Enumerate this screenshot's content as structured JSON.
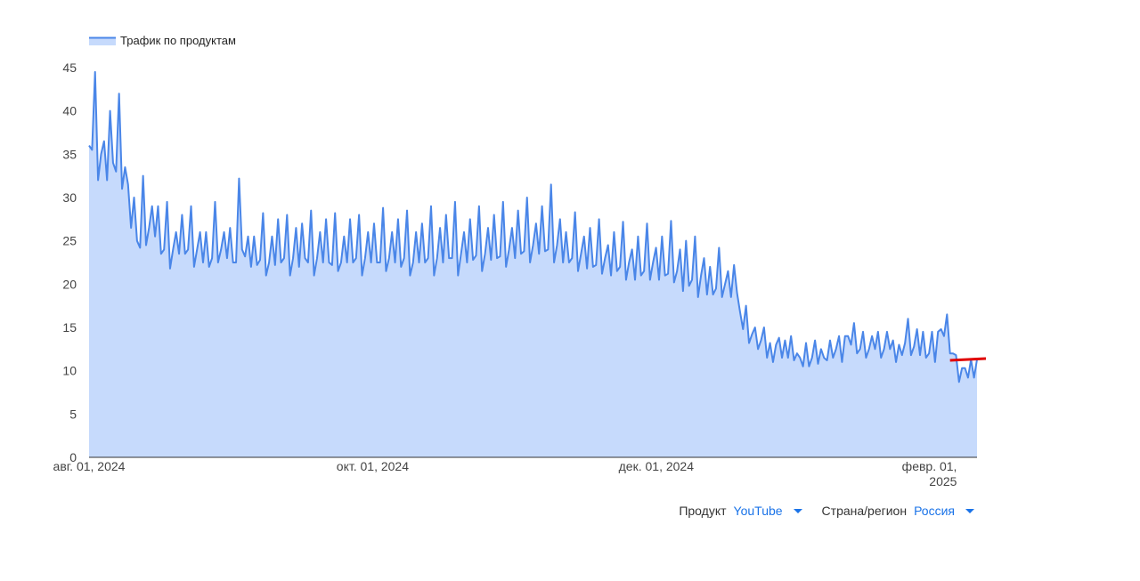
{
  "chart_data": {
    "type": "area",
    "title": "",
    "xlabel": "",
    "ylabel": "",
    "ylim": [
      0,
      45
    ],
    "yticks": [
      0,
      5,
      10,
      15,
      20,
      25,
      30,
      35,
      40,
      45
    ],
    "xlim": [
      "2024-08-01",
      "2025-02-08"
    ],
    "xticks": [
      {
        "date": "2024-08-01",
        "label": [
          "авг. 01, 2024"
        ]
      },
      {
        "date": "2024-10-01",
        "label": [
          "окт. 01, 2024"
        ]
      },
      {
        "date": "2024-12-01",
        "label": [
          "дек. 01, 2024"
        ]
      },
      {
        "date": "2025-02-01",
        "label": [
          "февр. 01,",
          "2025"
        ]
      }
    ],
    "grid": false,
    "legend_position": "top-left",
    "series": [
      {
        "name": "Трафик по продуктам",
        "color": "#4a86e8",
        "fill": "#c6dafc",
        "values": [
          36,
          35.5,
          44.5,
          32,
          35,
          36.5,
          32,
          40,
          34,
          33,
          42,
          31,
          33.5,
          31.5,
          26.5,
          30,
          25,
          24.2,
          32.5,
          24.5,
          26.5,
          29,
          25.5,
          29,
          23.5,
          24,
          29.5,
          21.8,
          24,
          26,
          23.5,
          28,
          23.5,
          24,
          29,
          22,
          24,
          26,
          22.5,
          26,
          22,
          23,
          29.5,
          22.5,
          24,
          26,
          23,
          26.5,
          22.5,
          22.5,
          32.2,
          24,
          23.2,
          25.5,
          22,
          25.5,
          22.2,
          22.8,
          28.2,
          21,
          22.5,
          25.5,
          22.2,
          27.5,
          22.5,
          23,
          28,
          21,
          23,
          26.5,
          22,
          27,
          23,
          22.5,
          28.5,
          21,
          23,
          26,
          22.5,
          27.5,
          22.5,
          22.2,
          28.2,
          21.5,
          22.5,
          25.5,
          22.5,
          27.5,
          22.5,
          23,
          28,
          21,
          23,
          26,
          22.5,
          27,
          22.5,
          22.5,
          28.8,
          21.5,
          23,
          26,
          22.5,
          27.5,
          22,
          23,
          28.5,
          21,
          22.5,
          26,
          22.5,
          27,
          22.5,
          23,
          29,
          21,
          23,
          26.5,
          22.5,
          28,
          23,
          23,
          29.5,
          21,
          23.5,
          26,
          22.5,
          27.5,
          22.8,
          23.3,
          29,
          21.5,
          23.5,
          26.5,
          22.8,
          28,
          23,
          23.2,
          29.5,
          22,
          24,
          26.5,
          23,
          28.5,
          23.5,
          23.8,
          30,
          22.5,
          24.5,
          27,
          23.5,
          29,
          23.8,
          24,
          31.5,
          22.5,
          24.5,
          27.5,
          22.5,
          26,
          22.5,
          23,
          28.3,
          21.5,
          23.5,
          25.5,
          21.8,
          26.5,
          22,
          22.2,
          27.5,
          21.2,
          23,
          24.5,
          21,
          26,
          21.5,
          22,
          27.2,
          20.5,
          22.5,
          24,
          20.5,
          25.5,
          21,
          21.5,
          27,
          20.5,
          22.5,
          24.2,
          20.5,
          25.5,
          21,
          21.2,
          27.3,
          20.2,
          21.5,
          24,
          19.2,
          25,
          19.8,
          20.5,
          25.5,
          18.5,
          21,
          23,
          18.8,
          22,
          18.8,
          19.5,
          24.2,
          18.5,
          20,
          21.5,
          18.5,
          22.2,
          19,
          16.8,
          14.8,
          17.5,
          13.2,
          14.2,
          15,
          12.5,
          13.5,
          15,
          11.5,
          13.2,
          11,
          13,
          13.8,
          11.5,
          13.5,
          11.5,
          14,
          11.2,
          12,
          11.5,
          10.5,
          13.2,
          10.5,
          11.5,
          13.5,
          10.8,
          12.5,
          11.5,
          11.2,
          13.5,
          11.5,
          12.5,
          14,
          11,
          14,
          14,
          13,
          15.5,
          12,
          12.5,
          14.5,
          11.5,
          12.5,
          14,
          12.5,
          14.5,
          11.5,
          12.5,
          14.5,
          12.5,
          13.5,
          11,
          13,
          11.8,
          13.2,
          16,
          11.8,
          12.8,
          14.8,
          11.8,
          14.5,
          11.5,
          12,
          14.5,
          11,
          14.5,
          14.8,
          14,
          16.5,
          12,
          12,
          11.8,
          8.7,
          10.3,
          10.3,
          9.2,
          11.3,
          9.2,
          11.3
        ],
        "trend_start": 11.2,
        "trend_end": 11.4,
        "trend_color": "#e00000"
      }
    ]
  },
  "filters": {
    "product_label": "Продукт",
    "product_value": "YouTube",
    "region_label": "Страна/регион",
    "region_value": "Россия"
  }
}
